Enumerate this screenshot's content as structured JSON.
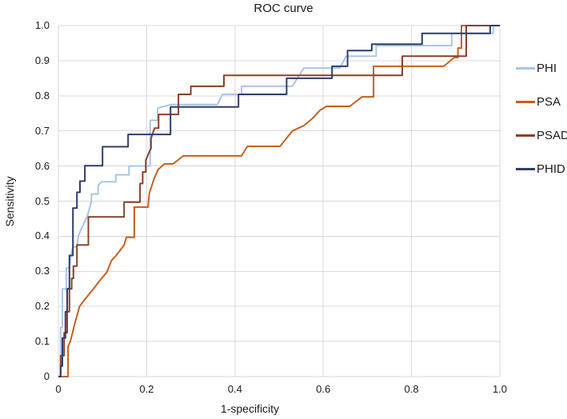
{
  "chart_data": {
    "type": "line",
    "subtype": "roc-step-curves",
    "title": "ROC curve",
    "xlabel": "1-specificity",
    "ylabel": "Sensitivity",
    "xlim": [
      0,
      1.0
    ],
    "ylim": [
      0,
      1.0
    ],
    "grid": "both",
    "legend_position": "right",
    "colors": {
      "grid": "#d9d9d9",
      "text": "#1a1a1a",
      "background": "#ffffff"
    },
    "x_ticks": [
      {
        "v": 0,
        "label": "0"
      },
      {
        "v": 0.2,
        "label": "0.2"
      },
      {
        "v": 0.4,
        "label": "0.4"
      },
      {
        "v": 0.6,
        "label": "0.6"
      },
      {
        "v": 0.8,
        "label": "0.8"
      },
      {
        "v": 1.0,
        "label": "1.0"
      }
    ],
    "y_ticks": [
      {
        "v": 0,
        "label": "0"
      },
      {
        "v": 0.1,
        "label": "0.1"
      },
      {
        "v": 0.2,
        "label": "0.2"
      },
      {
        "v": 0.3,
        "label": "0.3"
      },
      {
        "v": 0.4,
        "label": "0.4"
      },
      {
        "v": 0.5,
        "label": "0.5"
      },
      {
        "v": 0.6,
        "label": "0.6"
      },
      {
        "v": 0.7,
        "label": "0.7"
      },
      {
        "v": 0.8,
        "label": "0.8"
      },
      {
        "v": 0.9,
        "label": "0.9"
      },
      {
        "v": 1.0,
        "label": "1.0"
      }
    ],
    "series": [
      {
        "name": "PHI",
        "color": "#a9c5e8",
        "points": [
          [
            0,
            0
          ],
          [
            0.005,
            0
          ],
          [
            0.005,
            0.14
          ],
          [
            0.009,
            0.14
          ],
          [
            0.009,
            0.25
          ],
          [
            0.018,
            0.25
          ],
          [
            0.018,
            0.31
          ],
          [
            0.025,
            0.31
          ],
          [
            0.028,
            0.345
          ],
          [
            0.033,
            0.37
          ],
          [
            0.042,
            0.37
          ],
          [
            0.045,
            0.4
          ],
          [
            0.055,
            0.43
          ],
          [
            0.065,
            0.455
          ],
          [
            0.075,
            0.5
          ],
          [
            0.075,
            0.52
          ],
          [
            0.09,
            0.52
          ],
          [
            0.09,
            0.545
          ],
          [
            0.098,
            0.555
          ],
          [
            0.13,
            0.555
          ],
          [
            0.13,
            0.575
          ],
          [
            0.16,
            0.575
          ],
          [
            0.16,
            0.6
          ],
          [
            0.208,
            0.6
          ],
          [
            0.208,
            0.73
          ],
          [
            0.225,
            0.73
          ],
          [
            0.225,
            0.765
          ],
          [
            0.255,
            0.775
          ],
          [
            0.36,
            0.775
          ],
          [
            0.372,
            0.804
          ],
          [
            0.415,
            0.804
          ],
          [
            0.415,
            0.827
          ],
          [
            0.53,
            0.827
          ],
          [
            0.556,
            0.879
          ],
          [
            0.638,
            0.879
          ],
          [
            0.652,
            0.913
          ],
          [
            0.72,
            0.913
          ],
          [
            0.72,
            0.943
          ],
          [
            0.891,
            0.943
          ],
          [
            0.891,
            0.978
          ],
          [
            0.985,
            0.978
          ],
          [
            0.985,
            1.0
          ],
          [
            1.0,
            1.0
          ]
        ]
      },
      {
        "name": "PSA",
        "color": "#c95f1e",
        "points": [
          [
            0,
            0
          ],
          [
            0.022,
            0
          ],
          [
            0.022,
            0.086
          ],
          [
            0.027,
            0.1
          ],
          [
            0.032,
            0.125
          ],
          [
            0.037,
            0.15
          ],
          [
            0.043,
            0.177
          ],
          [
            0.048,
            0.2
          ],
          [
            0.06,
            0.22
          ],
          [
            0.077,
            0.246
          ],
          [
            0.092,
            0.271
          ],
          [
            0.11,
            0.298
          ],
          [
            0.12,
            0.33
          ],
          [
            0.131,
            0.345
          ],
          [
            0.149,
            0.375
          ],
          [
            0.154,
            0.397
          ],
          [
            0.172,
            0.397
          ],
          [
            0.172,
            0.483
          ],
          [
            0.203,
            0.483
          ],
          [
            0.206,
            0.522
          ],
          [
            0.217,
            0.565
          ],
          [
            0.226,
            0.59
          ],
          [
            0.24,
            0.606
          ],
          [
            0.26,
            0.606
          ],
          [
            0.283,
            0.629
          ],
          [
            0.415,
            0.629
          ],
          [
            0.428,
            0.656
          ],
          [
            0.502,
            0.656
          ],
          [
            0.53,
            0.7
          ],
          [
            0.556,
            0.715
          ],
          [
            0.576,
            0.736
          ],
          [
            0.592,
            0.758
          ],
          [
            0.607,
            0.77
          ],
          [
            0.66,
            0.77
          ],
          [
            0.688,
            0.797
          ],
          [
            0.714,
            0.797
          ],
          [
            0.714,
            0.884
          ],
          [
            0.873,
            0.884
          ],
          [
            0.897,
            0.909
          ],
          [
            0.905,
            0.909
          ],
          [
            0.905,
            0.936
          ],
          [
            0.913,
            0.936
          ],
          [
            0.913,
            1.0
          ],
          [
            1.0,
            1.0
          ]
        ]
      },
      {
        "name": "PSAD",
        "color": "#8a4126",
        "points": [
          [
            0,
            0
          ],
          [
            0.005,
            0
          ],
          [
            0.005,
            0.06
          ],
          [
            0.013,
            0.06
          ],
          [
            0.013,
            0.125
          ],
          [
            0.02,
            0.125
          ],
          [
            0.02,
            0.185
          ],
          [
            0.025,
            0.185
          ],
          [
            0.025,
            0.25
          ],
          [
            0.03,
            0.25
          ],
          [
            0.03,
            0.28
          ],
          [
            0.034,
            0.28
          ],
          [
            0.034,
            0.315
          ],
          [
            0.042,
            0.315
          ],
          [
            0.042,
            0.375
          ],
          [
            0.068,
            0.375
          ],
          [
            0.068,
            0.455
          ],
          [
            0.149,
            0.455
          ],
          [
            0.149,
            0.497
          ],
          [
            0.185,
            0.497
          ],
          [
            0.185,
            0.55
          ],
          [
            0.191,
            0.55
          ],
          [
            0.191,
            0.583
          ],
          [
            0.198,
            0.583
          ],
          [
            0.198,
            0.617
          ],
          [
            0.21,
            0.651
          ],
          [
            0.21,
            0.679
          ],
          [
            0.218,
            0.708
          ],
          [
            0.227,
            0.708
          ],
          [
            0.227,
            0.747
          ],
          [
            0.272,
            0.747
          ],
          [
            0.272,
            0.804
          ],
          [
            0.3,
            0.804
          ],
          [
            0.3,
            0.827
          ],
          [
            0.375,
            0.827
          ],
          [
            0.375,
            0.858
          ],
          [
            0.779,
            0.858
          ],
          [
            0.779,
            0.913
          ],
          [
            0.924,
            0.913
          ],
          [
            0.924,
            1.0
          ],
          [
            1.0,
            1.0
          ]
        ]
      },
      {
        "name": "PHID",
        "color": "#2b3f6c",
        "points": [
          [
            0,
            0
          ],
          [
            0.005,
            0
          ],
          [
            0.005,
            0.03
          ],
          [
            0.009,
            0.03
          ],
          [
            0.009,
            0.11
          ],
          [
            0.016,
            0.11
          ],
          [
            0.016,
            0.185
          ],
          [
            0.02,
            0.185
          ],
          [
            0.02,
            0.25
          ],
          [
            0.025,
            0.25
          ],
          [
            0.025,
            0.345
          ],
          [
            0.033,
            0.345
          ],
          [
            0.033,
            0.48
          ],
          [
            0.042,
            0.48
          ],
          [
            0.042,
            0.525
          ],
          [
            0.049,
            0.525
          ],
          [
            0.049,
            0.557
          ],
          [
            0.06,
            0.557
          ],
          [
            0.06,
            0.601
          ],
          [
            0.1,
            0.601
          ],
          [
            0.1,
            0.655
          ],
          [
            0.158,
            0.655
          ],
          [
            0.158,
            0.69
          ],
          [
            0.254,
            0.69
          ],
          [
            0.254,
            0.768
          ],
          [
            0.408,
            0.768
          ],
          [
            0.408,
            0.804
          ],
          [
            0.517,
            0.804
          ],
          [
            0.517,
            0.85
          ],
          [
            0.62,
            0.85
          ],
          [
            0.62,
            0.884
          ],
          [
            0.655,
            0.884
          ],
          [
            0.655,
            0.929
          ],
          [
            0.71,
            0.929
          ],
          [
            0.71,
            0.947
          ],
          [
            0.824,
            0.947
          ],
          [
            0.824,
            0.978
          ],
          [
            0.978,
            0.978
          ],
          [
            0.978,
            1.0
          ],
          [
            1.0,
            1.0
          ]
        ]
      }
    ]
  }
}
